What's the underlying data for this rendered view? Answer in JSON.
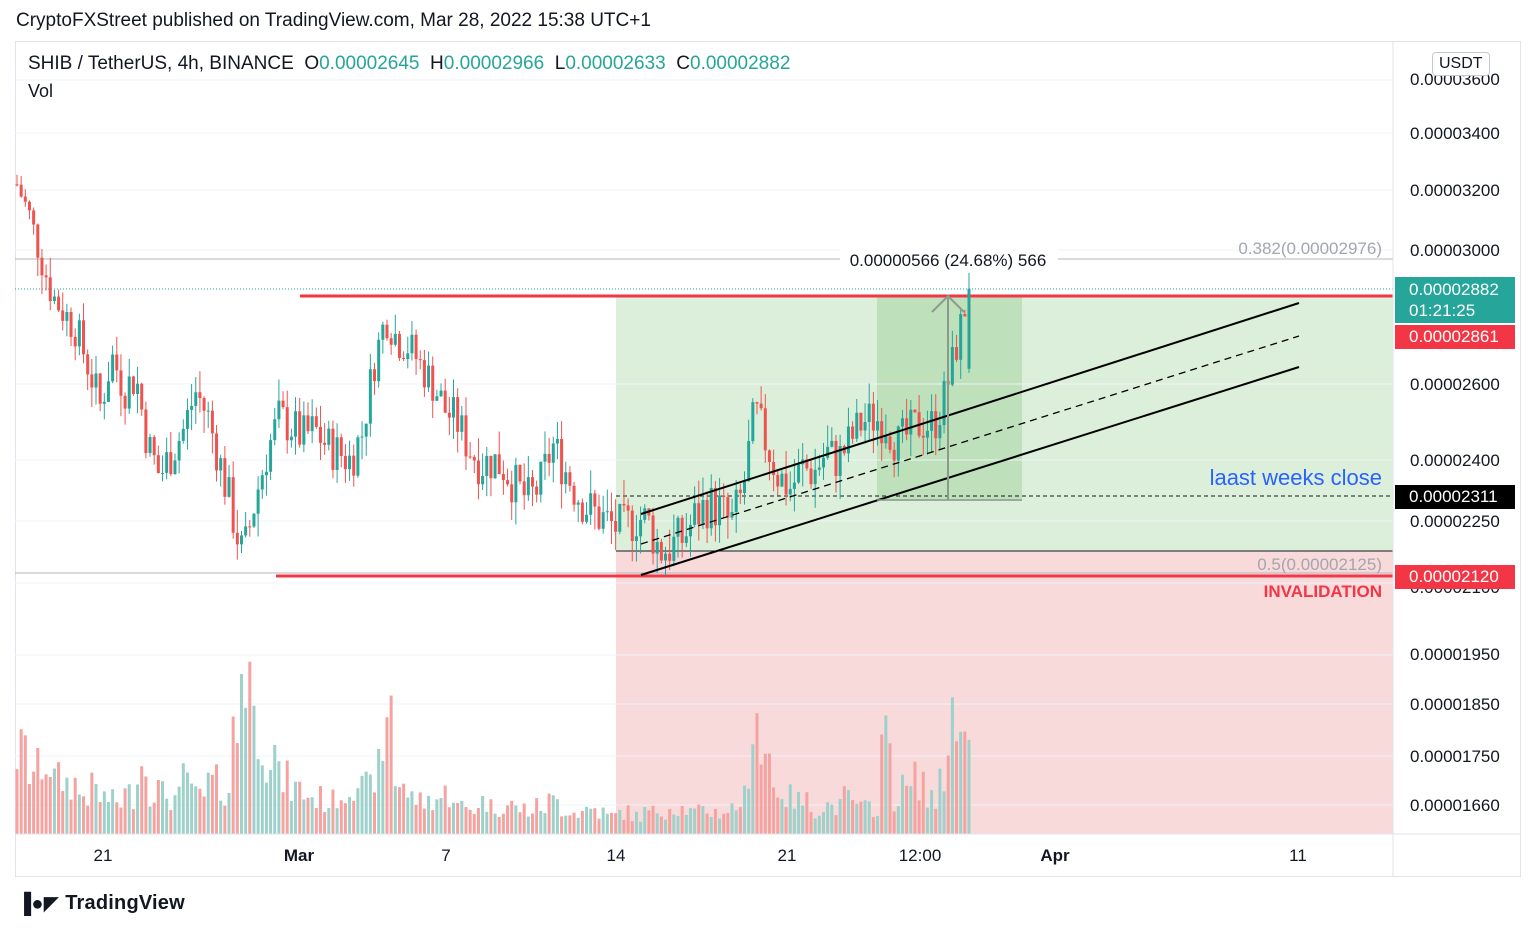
{
  "header": {
    "publisher": "CryptoFXStreet published on TradingView.com, Mar 28, 2022 15:38 UTC+1"
  },
  "legend": {
    "symbol": "SHIB / TetherUS, 4h, BINANCE",
    "o_label": "O",
    "o_value": "0.00002645",
    "h_label": "H",
    "h_value": "0.00002966",
    "l_label": "L",
    "l_value": "0.00002633",
    "c_label": "C",
    "c_value": "0.00002882",
    "volume_label": "Vol"
  },
  "axis": {
    "unit": "USDT",
    "y_ticks": [
      "0.00003600",
      "0.00003400",
      "0.00003200",
      "0.00003000",
      "0.00002600",
      "0.00002400",
      "0.00002250",
      "0.00002100",
      "0.00001950",
      "0.00001850",
      "0.00001750",
      "0.00001660"
    ],
    "x_ticks": [
      "21",
      "Mar",
      "7",
      "14",
      "21",
      "12:00",
      "Apr",
      "11"
    ]
  },
  "badges": {
    "price": "0.00002882",
    "countdown": "01:21:25",
    "resistance": "0.00002861",
    "weekly_close": "0.00002311",
    "invalidation_level": "0.00002120"
  },
  "annotations": {
    "measure": "0.00000566 (24.68%) 566",
    "fib_382": "0.382(0.00002976)",
    "fib_50": "0.5(0.00002125)",
    "weeks_close": "laast weeks close",
    "invalidation": "INVALIDATION"
  },
  "colors": {
    "up": "#26a69a",
    "down": "#ef5350",
    "vol_up": "#9fd1cb",
    "vol_down": "#f5a3a0",
    "resistance": "#f23645",
    "profit_zone": "#d6ecd3",
    "loss_zone": "#f8d3d5",
    "measure_zone": "#b6dcb2",
    "annotation_blue": "#2962ff",
    "badge_teal": "#26a69a",
    "badge_red": "#f23645",
    "badge_black": "#000000"
  },
  "chart_data": {
    "type": "candlestick",
    "symbol": "SHIB / TetherUS",
    "timeframe": "4h",
    "exchange": "BINANCE",
    "ylim": [
      1.63e-05,
      3.67e-05
    ],
    "last_candle": {
      "open": 2.645e-05,
      "high": 2.966e-05,
      "low": 2.633e-05,
      "close": 2.882e-05
    },
    "levels": {
      "resistance": 2.861e-05,
      "last_weeks_close": 2.311e-05,
      "invalidation": 2.12e-05,
      "fib_0_382": 2.976e-05,
      "fib_0_5": 2.125e-05
    },
    "measure": {
      "change": 5.66e-06,
      "percent": 24.68,
      "ticks": 566
    },
    "price_path": [
      3.22e-05,
      3.12e-05,
      2.98e-05,
      2.86e-05,
      2.81e-05,
      2.76e-05,
      2.65e-05,
      2.54e-05,
      2.68e-05,
      2.59e-05,
      2.62e-05,
      2.44e-05,
      2.36e-05,
      2.42e-05,
      2.48e-05,
      2.58e-05,
      2.52e-05,
      2.4e-05,
      2.28e-05,
      2.16e-05,
      2.3e-05,
      2.42e-05,
      2.51e-05,
      2.49e-05,
      2.46e-05,
      2.48e-05,
      2.44e-05,
      2.42e-05,
      2.4e-05,
      2.47e-05,
      2.66e-05,
      2.8e-05,
      2.73e-05,
      2.71e-05,
      2.65e-05,
      2.6e-05,
      2.53e-05,
      2.5e-05,
      2.43e-05,
      2.39e-05,
      2.4e-05,
      2.38e-05,
      2.33e-05,
      2.3e-05,
      2.34e-05,
      2.44e-05,
      2.38e-05,
      2.32e-05,
      2.28e-05,
      2.26e-05,
      2.24e-05,
      2.23e-05,
      2.26e-05,
      2.25e-05,
      2.18e-05,
      2.19e-05,
      2.21e-05,
      2.26e-05,
      2.29e-05,
      2.28e-05,
      2.24e-05,
      2.32e-05,
      2.53e-05,
      2.44e-05,
      2.36e-05,
      2.33e-05,
      2.38e-05,
      2.37e-05,
      2.42e-05,
      2.4e-05,
      2.45e-05,
      2.5e-05,
      2.51e-05,
      2.5e-05,
      2.44e-05,
      2.47e-05,
      2.5e-05,
      2.49e-05,
      2.57e-05,
      2.72e-05,
      2.88e-05
    ],
    "volume_profile": [
      0.45,
      0.35,
      0.4,
      0.3,
      0.28,
      0.22,
      0.25,
      0.2,
      0.18,
      0.22,
      0.38,
      0.25,
      0.22,
      0.2,
      0.3,
      0.2,
      0.28,
      0.25,
      0.55,
      0.95,
      0.6,
      0.45,
      0.3,
      0.25,
      0.22,
      0.2,
      0.18,
      0.22,
      0.3,
      0.25,
      0.35,
      0.75,
      0.3,
      0.2,
      0.18,
      0.2,
      0.22,
      0.15,
      0.14,
      0.18,
      0.15,
      0.16,
      0.14,
      0.13,
      0.15,
      0.18,
      0.14,
      0.12,
      0.14,
      0.12,
      0.1,
      0.12,
      0.1,
      0.12,
      0.13,
      0.15,
      0.14,
      0.12,
      0.13,
      0.12,
      0.14,
      0.2,
      0.8,
      0.45,
      0.25,
      0.2,
      0.18,
      0.14,
      0.16,
      0.15,
      0.2,
      0.14,
      0.15,
      0.5,
      0.2,
      0.25,
      0.3,
      0.18,
      0.35,
      0.78,
      0.5
    ]
  }
}
